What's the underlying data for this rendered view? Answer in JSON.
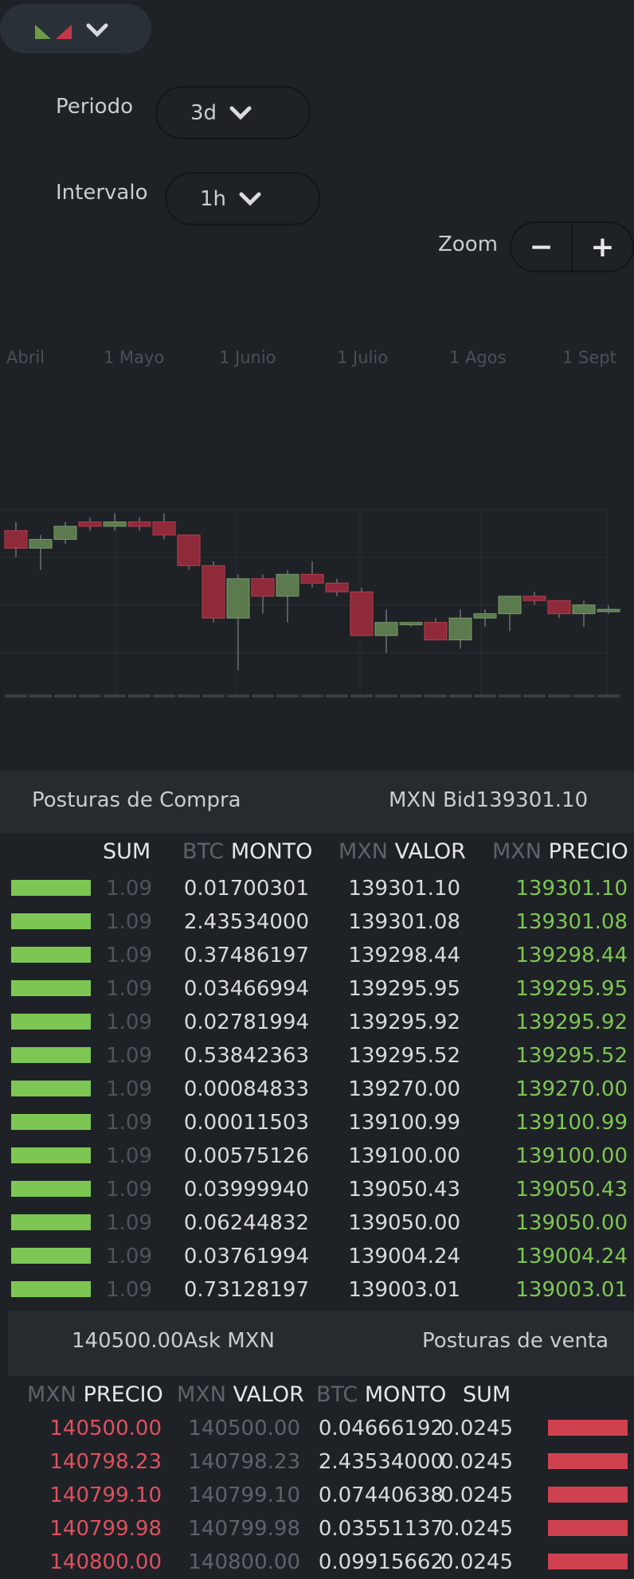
{
  "controls": {
    "periodo_label": "Periodo",
    "periodo_value": "3d",
    "intervalo_label": "Intervalo",
    "intervalo_value": "1h",
    "zoom_label": "Zoom",
    "zoom_minus": "−",
    "zoom_plus": "+"
  },
  "chart": {
    "months": [
      "Abril",
      "1 Mayo",
      "1 Junio",
      "1 Julio",
      "1 Agos",
      "1 Sept"
    ],
    "colors": {
      "up": "#5b7a4e",
      "down": "#8e2a3a",
      "grid": "#2a2f35"
    }
  },
  "chart_data": {
    "type": "candlestick",
    "x_ticks": [
      "Abril",
      "1 Mayo",
      "1 Junio",
      "1 Julio",
      "1 Agos",
      "1 Sept"
    ],
    "candles": [
      {
        "o": 58,
        "c": 54,
        "h": 60,
        "l": 52
      },
      {
        "o": 54,
        "c": 56,
        "h": 57,
        "l": 49
      },
      {
        "o": 56,
        "c": 59,
        "h": 60,
        "l": 55
      },
      {
        "o": 60,
        "c": 59,
        "h": 61,
        "l": 58
      },
      {
        "o": 59,
        "c": 60,
        "h": 62,
        "l": 58
      },
      {
        "o": 60,
        "c": 59,
        "h": 61,
        "l": 58
      },
      {
        "o": 60,
        "c": 57,
        "h": 62,
        "l": 56
      },
      {
        "o": 57,
        "c": 50,
        "h": 57,
        "l": 49
      },
      {
        "o": 50,
        "c": 38,
        "h": 51,
        "l": 37
      },
      {
        "o": 38,
        "c": 47,
        "h": 48,
        "l": 26
      },
      {
        "o": 47,
        "c": 43,
        "h": 48,
        "l": 39
      },
      {
        "o": 43,
        "c": 48,
        "h": 49,
        "l": 37
      },
      {
        "o": 48,
        "c": 46,
        "h": 51,
        "l": 45
      },
      {
        "o": 46,
        "c": 44,
        "h": 47,
        "l": 43
      },
      {
        "o": 44,
        "c": 34,
        "h": 45,
        "l": 34
      },
      {
        "o": 34,
        "c": 37,
        "h": 40,
        "l": 30
      },
      {
        "o": 37,
        "c": 37,
        "h": 37,
        "l": 36
      },
      {
        "o": 37,
        "c": 33,
        "h": 38,
        "l": 33
      },
      {
        "o": 33,
        "c": 38,
        "h": 40,
        "l": 31
      },
      {
        "o": 38,
        "c": 39,
        "h": 40,
        "l": 36
      },
      {
        "o": 39,
        "c": 43,
        "h": 43,
        "l": 35
      },
      {
        "o": 43,
        "c": 42,
        "h": 44,
        "l": 41
      },
      {
        "o": 42,
        "c": 39,
        "h": 42,
        "l": 38
      },
      {
        "o": 39,
        "c": 41,
        "h": 42,
        "l": 36
      },
      {
        "o": 40,
        "c": 40,
        "h": 41,
        "l": 39
      }
    ]
  },
  "bids": {
    "title": "Posturas de Compra",
    "bid_label": "MXN Bid139301.10",
    "columns": {
      "sum": "SUM",
      "monto_cur": "BTC",
      "monto": "MONTO",
      "valor_cur": "MXN",
      "valor": "VALOR",
      "precio_cur": "MXN",
      "precio": "PRECIO"
    },
    "rows": [
      {
        "sum": "1.09",
        "monto": "0.01700301",
        "valor": "139301.10",
        "precio": "139301.10"
      },
      {
        "sum": "1.09",
        "monto": "2.43534000",
        "valor": "139301.08",
        "precio": "139301.08"
      },
      {
        "sum": "1.09",
        "monto": "0.37486197",
        "valor": "139298.44",
        "precio": "139298.44"
      },
      {
        "sum": "1.09",
        "monto": "0.03466994",
        "valor": "139295.95",
        "precio": "139295.95"
      },
      {
        "sum": "1.09",
        "monto": "0.02781994",
        "valor": "139295.92",
        "precio": "139295.92"
      },
      {
        "sum": "1.09",
        "monto": "0.53842363",
        "valor": "139295.52",
        "precio": "139295.52"
      },
      {
        "sum": "1.09",
        "monto": "0.00084833",
        "valor": "139270.00",
        "precio": "139270.00"
      },
      {
        "sum": "1.09",
        "monto": "0.00011503",
        "valor": "139100.99",
        "precio": "139100.99"
      },
      {
        "sum": "1.09",
        "monto": "0.00575126",
        "valor": "139100.00",
        "precio": "139100.00"
      },
      {
        "sum": "1.09",
        "monto": "0.03999940",
        "valor": "139050.43",
        "precio": "139050.43"
      },
      {
        "sum": "1.09",
        "monto": "0.06244832",
        "valor": "139050.00",
        "precio": "139050.00"
      },
      {
        "sum": "1.09",
        "monto": "0.03761994",
        "valor": "139004.24",
        "precio": "139004.24"
      },
      {
        "sum": "1.09",
        "monto": "0.73128197",
        "valor": "139003.01",
        "precio": "139003.01"
      }
    ]
  },
  "asks": {
    "title": "Posturas de venta",
    "ask_label": "140500.00Ask MXN",
    "columns": {
      "precio_cur": "MXN",
      "precio": "PRECIO",
      "valor_cur": "MXN",
      "valor": "VALOR",
      "monto_cur": "BTC",
      "monto": "MONTO",
      "sum": "SUM"
    },
    "rows": [
      {
        "precio": "140500.00",
        "valor": "140500.00",
        "monto": "0.04666192",
        "sum": "0.0245"
      },
      {
        "precio": "140798.23",
        "valor": "140798.23",
        "monto": "2.43534000",
        "sum": "0.0245"
      },
      {
        "precio": "140799.10",
        "valor": "140799.10",
        "monto": "0.07440638",
        "sum": "0.0245"
      },
      {
        "precio": "140799.98",
        "valor": "140799.98",
        "monto": "0.03551137",
        "sum": "0.0245"
      },
      {
        "precio": "140800.00",
        "valor": "140800.00",
        "monto": "0.09915662",
        "sum": "0.0245"
      }
    ]
  }
}
